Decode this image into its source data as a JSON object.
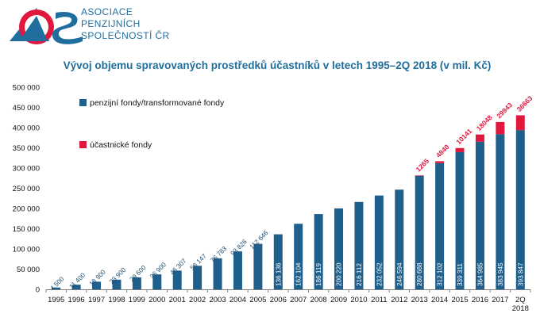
{
  "header": {
    "org_line1": "ASOCIACE",
    "org_line2": "PENZIJNÍCH",
    "org_line3": "SPOLEČNOSTÍ ČR",
    "logo_text": "APS"
  },
  "chart_data": {
    "type": "bar",
    "stacked": true,
    "title": "Vývoj objemu spravovaných prostředků účastníků v letech 1995–2Q 2018 (v mil. Kč)",
    "categories": [
      "1995",
      "1996",
      "1997",
      "1998",
      "1999",
      "2000",
      "2001",
      "2002",
      "2003",
      "2004",
      "2005",
      "2006",
      "2007",
      "2008",
      "2009",
      "2010",
      "2011",
      "2012",
      "2013",
      "2014",
      "2015",
      "2016",
      "2017",
      "2Q 2018"
    ],
    "category_lines": [
      [
        "1995"
      ],
      [
        "1996"
      ],
      [
        "1997"
      ],
      [
        "1998"
      ],
      [
        "1999"
      ],
      [
        "2000"
      ],
      [
        "2001"
      ],
      [
        "2002"
      ],
      [
        "2003"
      ],
      [
        "2004"
      ],
      [
        "2005"
      ],
      [
        "2006"
      ],
      [
        "2007"
      ],
      [
        "2008"
      ],
      [
        "2009"
      ],
      [
        "2010"
      ],
      [
        "2011"
      ],
      [
        "2012"
      ],
      [
        "2013"
      ],
      [
        "2014"
      ],
      [
        "2015"
      ],
      [
        "2016"
      ],
      [
        "2017"
      ],
      [
        "2Q",
        "2018"
      ]
    ],
    "series": [
      {
        "name": "penzijní fondy/transformované fondy",
        "color": "#1f5f8b",
        "values": [
          4500,
          11400,
          18900,
          23900,
          29600,
          36900,
          46307,
          58147,
          76783,
          93826,
          112646,
          136136,
          162104,
          186119,
          200220,
          216112,
          232052,
          246594,
          280688,
          312102,
          339311,
          364985,
          383945,
          393847
        ],
        "labels": [
          "4 500",
          "11 400",
          "18 900",
          "23 900",
          "29 600",
          "36 900",
          "46 307",
          "58 147",
          "76 783",
          "93 826",
          "112 646",
          "136 136",
          "162 104",
          "186 119",
          "200 220",
          "216 112",
          "232 052",
          "246 594",
          "280 688",
          "312 102",
          "339 311",
          "364 985",
          "383 945",
          "393 847"
        ]
      },
      {
        "name": "účastnické fondy",
        "color": "#e2173d",
        "values": [
          null,
          null,
          null,
          null,
          null,
          null,
          null,
          null,
          null,
          null,
          null,
          null,
          null,
          null,
          null,
          null,
          null,
          null,
          1265,
          4840,
          10141,
          18048,
          29943,
          36663
        ],
        "labels": [
          "",
          "",
          "",
          "",
          "",
          "",
          "",
          "",
          "",
          "",
          "",
          "",
          "",
          "",
          "",
          "",
          "",
          "",
          "1265",
          "4840",
          "10141",
          "18048",
          "29943",
          "36663"
        ]
      }
    ],
    "ylim": [
      0,
      500000
    ],
    "yticks": [
      0,
      50000,
      100000,
      150000,
      200000,
      250000,
      300000,
      350000,
      400000,
      450000,
      500000
    ],
    "ytick_labels": [
      "0",
      "50 000",
      "100 000",
      "150 000",
      "200 000",
      "250 000",
      "300 000",
      "350 000",
      "400 000",
      "450 000",
      "500 000"
    ],
    "xlabel": "",
    "ylabel": "",
    "grid": false,
    "legend": "top-left"
  }
}
